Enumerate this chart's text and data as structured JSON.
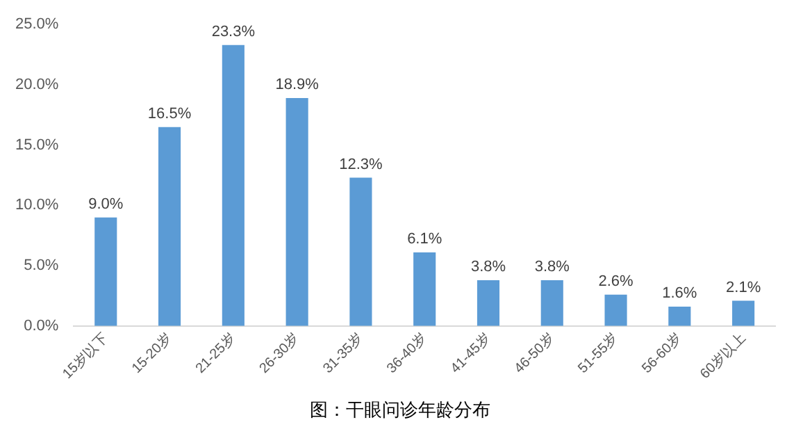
{
  "chart_data": {
    "type": "bar",
    "title": "图：干眼问诊年龄分布",
    "categories": [
      "15岁以下",
      "15-20岁",
      "21-25岁",
      "26-30岁",
      "31-35岁",
      "36-40岁",
      "41-45岁",
      "46-50岁",
      "51-55岁",
      "56-60岁",
      "60岁以上"
    ],
    "values": [
      9.0,
      16.5,
      23.3,
      18.9,
      12.3,
      6.1,
      3.8,
      3.8,
      2.6,
      1.6,
      2.1
    ],
    "value_labels": [
      "9.0%",
      "16.5%",
      "23.3%",
      "18.9%",
      "12.3%",
      "6.1%",
      "3.8%",
      "3.8%",
      "2.6%",
      "1.6%",
      "2.1%"
    ],
    "color": "#5b9bd5",
    "ylim": [
      0,
      25
    ],
    "yticks": [
      {
        "value": 0,
        "label": "0.0%"
      },
      {
        "value": 5,
        "label": "5.0%"
      },
      {
        "value": 10,
        "label": "10.0%"
      },
      {
        "value": 15,
        "label": "15.0%"
      },
      {
        "value": 20,
        "label": "20.0%"
      },
      {
        "value": 25,
        "label": "25.0%"
      }
    ],
    "grid": false,
    "legend": false
  }
}
